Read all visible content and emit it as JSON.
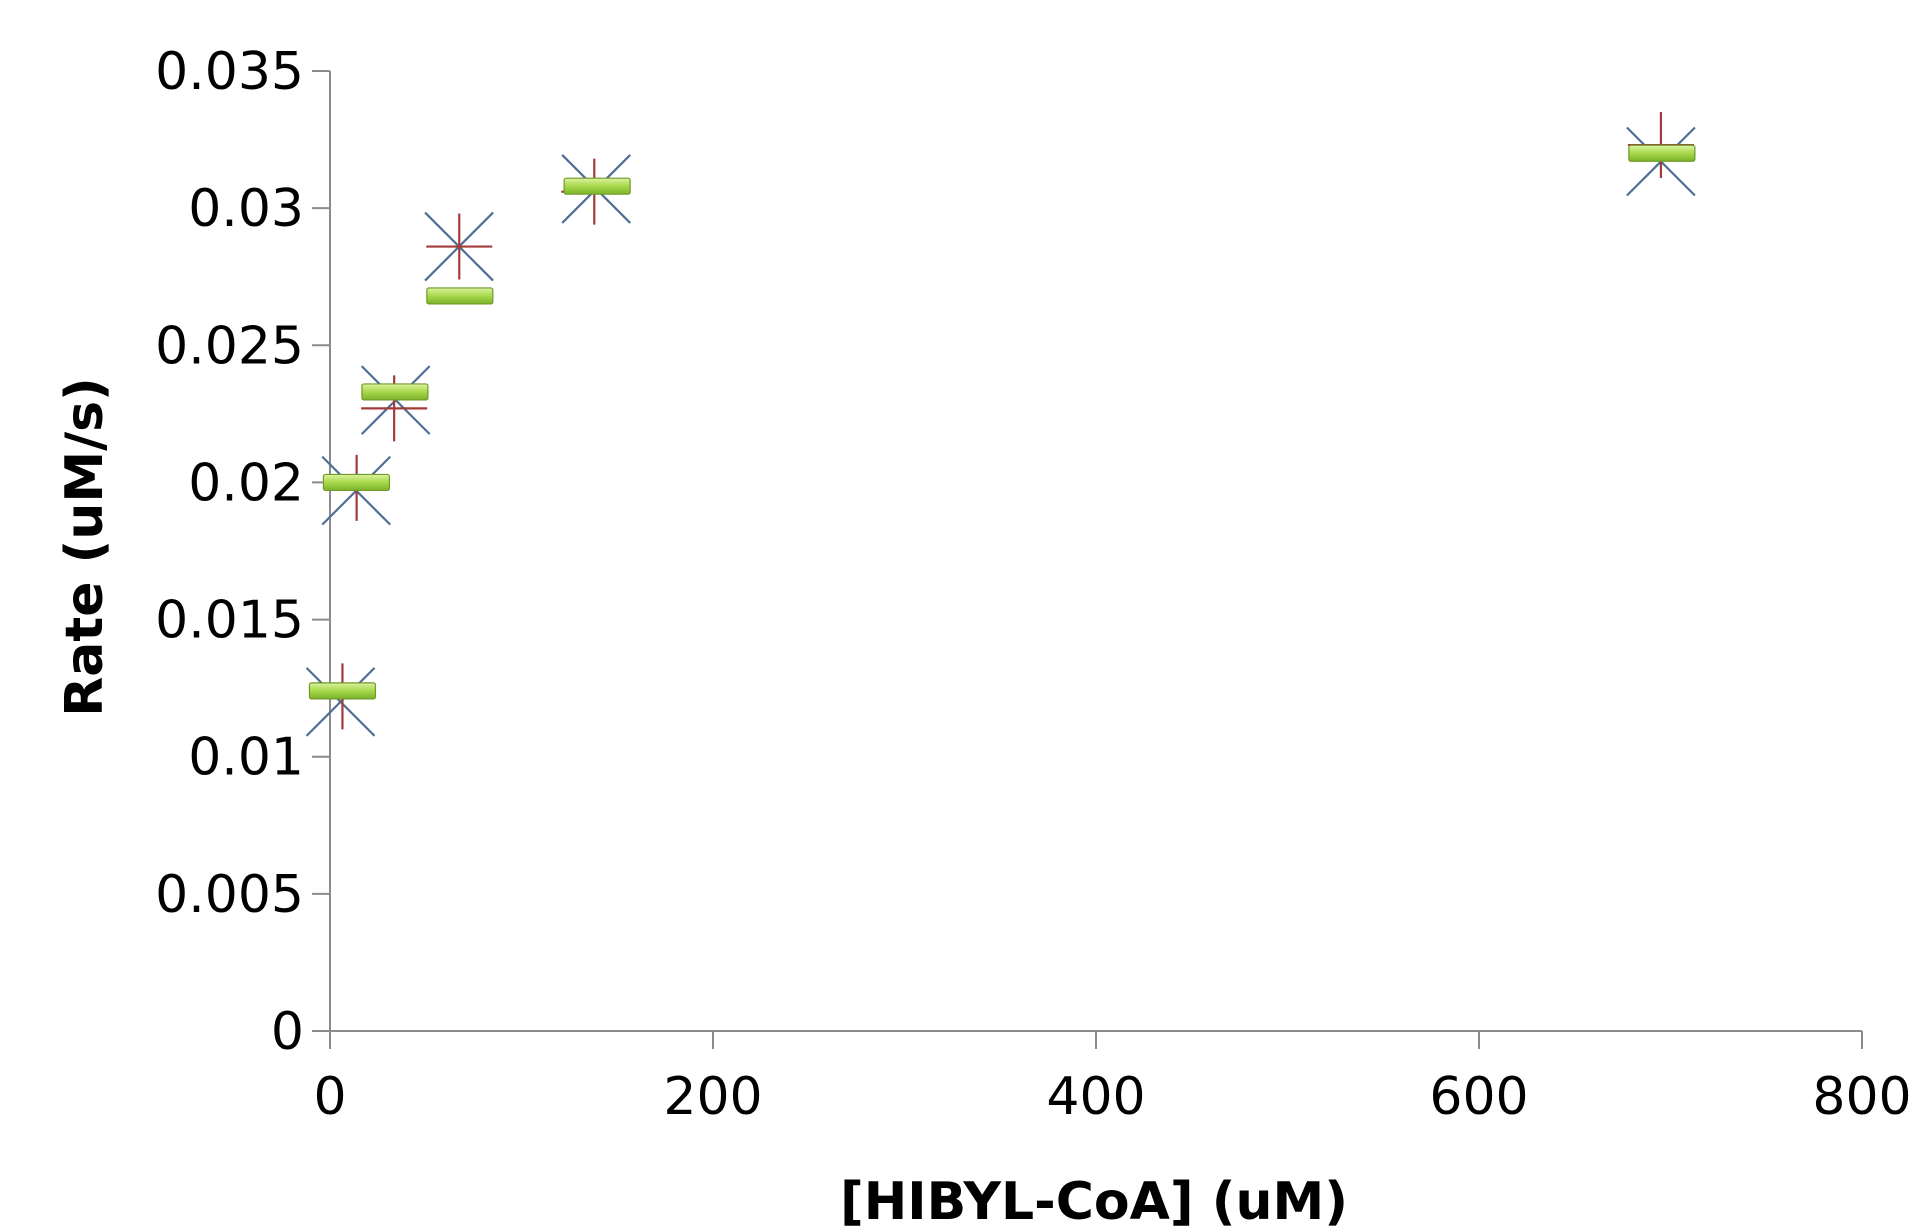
{
  "chart_data": {
    "type": "scatter",
    "title": "",
    "xlabel": "[HIBYL-CoA] (uM)",
    "ylabel": "Rate (uM/s)",
    "xlim": [
      0,
      800
    ],
    "ylim": [
      0,
      0.035
    ],
    "xticks": [
      0,
      200,
      400,
      600,
      800
    ],
    "xtick_labels": [
      "0",
      "200",
      "400",
      "600",
      "800"
    ],
    "yticks": [
      0,
      0.005,
      0.01,
      0.015,
      0.02,
      0.025,
      0.03,
      0.035
    ],
    "ytick_labels": [
      "0",
      "0.005",
      "0.01",
      "0.015",
      "0.02",
      "0.025",
      "0.03",
      "0.035"
    ],
    "grid": false,
    "legend": "none",
    "series": [
      {
        "marker": "x-cross",
        "color": "#4F6E96",
        "x": [
          5.5,
          13.7,
          34.3,
          67.4,
          139,
          695
        ],
        "y": [
          0.012,
          0.0197,
          0.023,
          0.0286,
          0.0307,
          0.0317
        ]
      },
      {
        "marker": "plus",
        "color": "#A33B3A",
        "x": [
          6.5,
          13.9,
          33.5,
          67.5,
          138,
          695
        ],
        "y": [
          0.0122,
          0.0198,
          0.0227,
          0.0286,
          0.0306,
          0.0323
        ]
      },
      {
        "marker": "dash",
        "color": "#9ACD32",
        "x": [
          6.5,
          13.8,
          33.9,
          67.8,
          139.5,
          695.5
        ],
        "y": [
          0.0124,
          0.02,
          0.0233,
          0.0268,
          0.0308,
          0.032
        ]
      }
    ]
  }
}
